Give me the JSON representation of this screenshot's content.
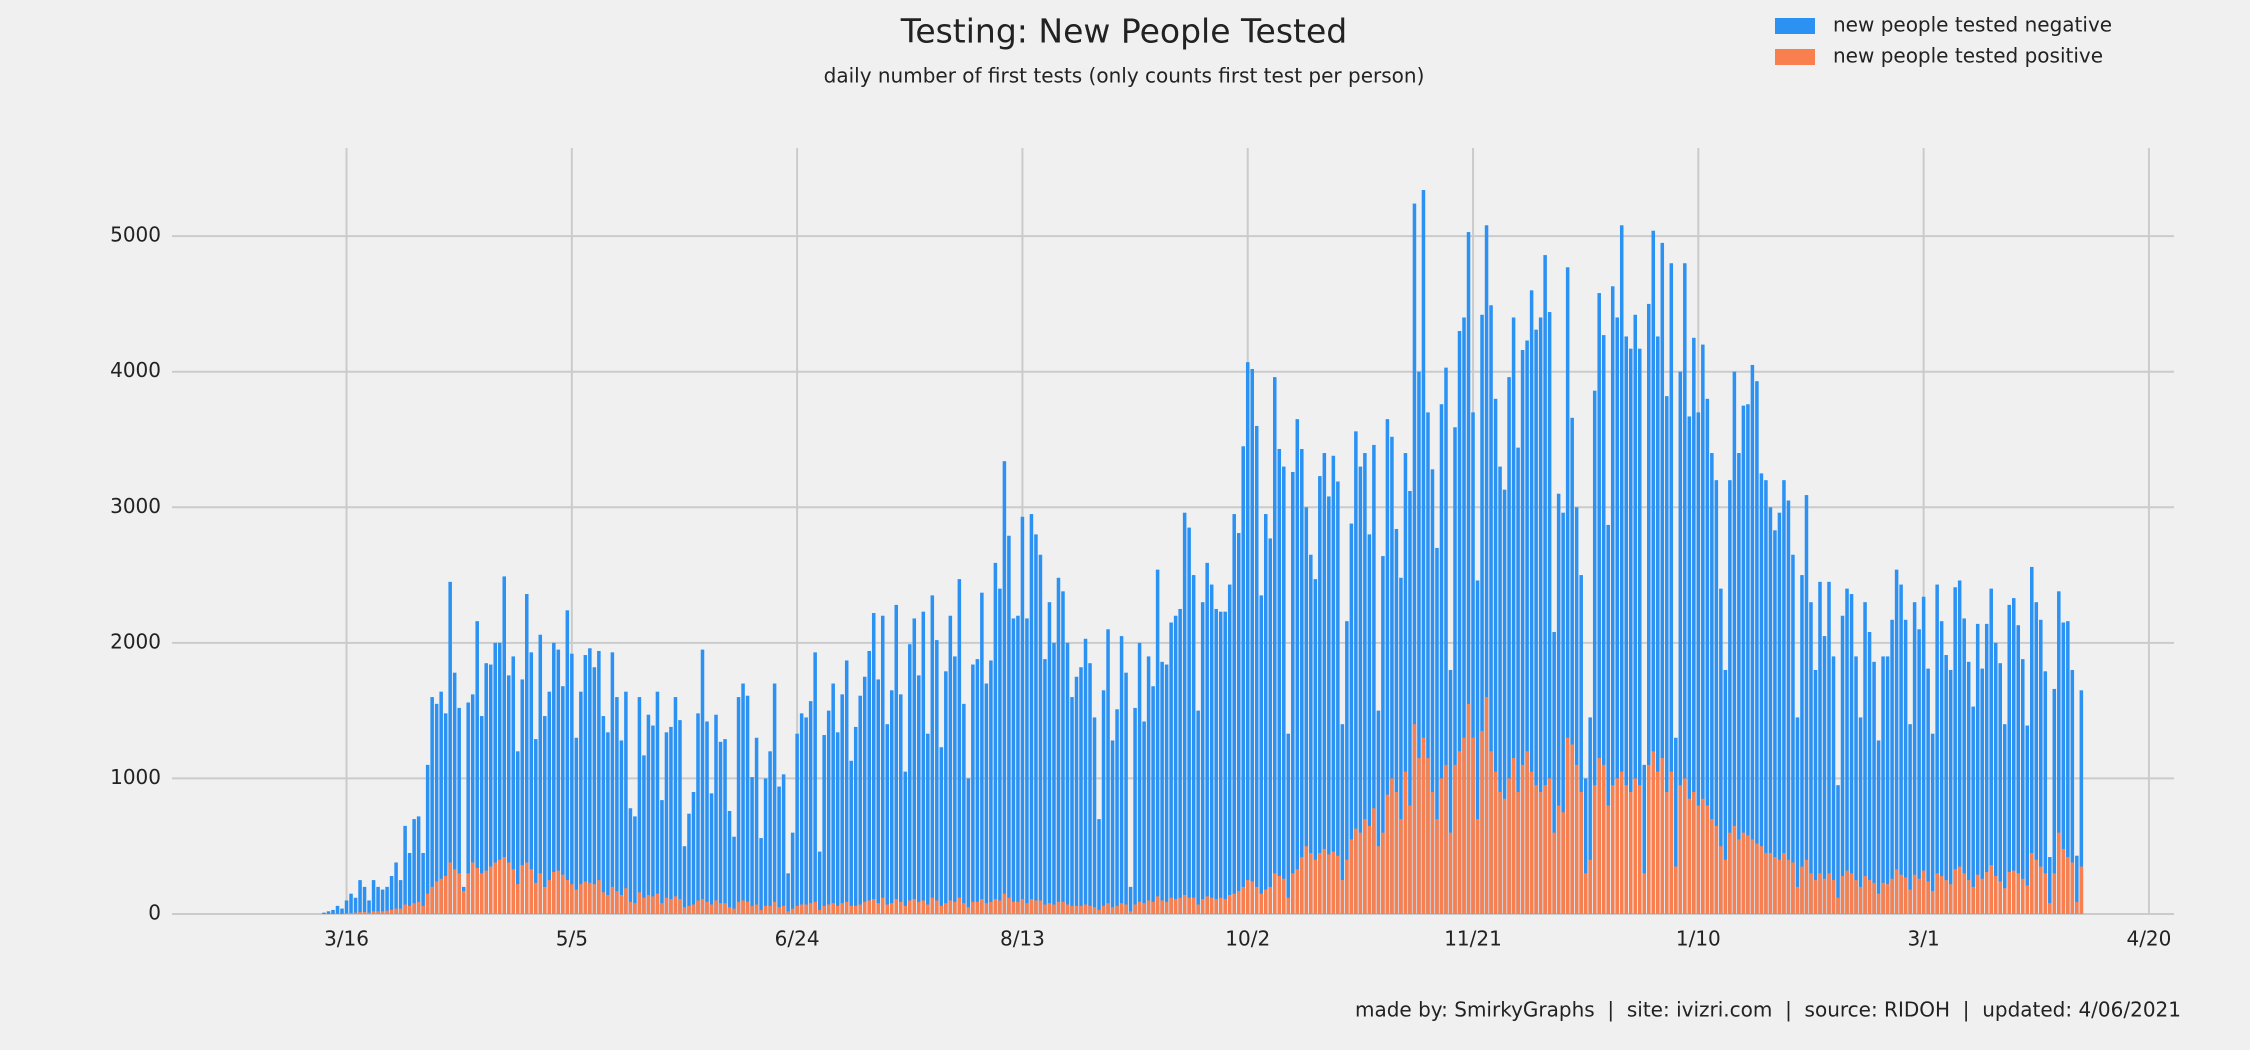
{
  "chart_data": {
    "type": "bar",
    "title": "Testing: New People Tested",
    "subtitle": "daily number of first tests (only counts first test per person)",
    "caption": "made by: SmirkyGraphs  |  site: ivizri.com  |  source: RIDOH  |  updated: 4/06/2021",
    "categories": [
      "3/11",
      "3/12",
      "3/13",
      "3/14",
      "3/15",
      "3/16",
      "3/17",
      "3/18",
      "3/19",
      "3/20",
      "3/21",
      "3/22",
      "3/23",
      "3/24",
      "3/25",
      "3/26",
      "3/27",
      "3/28",
      "3/29",
      "3/30",
      "3/31",
      "4/1",
      "4/2",
      "4/3",
      "4/4",
      "4/5",
      "4/6",
      "4/7",
      "4/8",
      "4/9",
      "4/10",
      "4/11",
      "4/12",
      "4/13",
      "4/14",
      "4/15",
      "4/16",
      "4/17",
      "4/18",
      "4/19",
      "4/20",
      "4/21",
      "4/22",
      "4/23",
      "4/24",
      "4/25",
      "4/26",
      "4/27",
      "4/28",
      "4/29",
      "4/30",
      "5/1",
      "5/2",
      "5/3",
      "5/4",
      "5/5",
      "5/6",
      "5/7",
      "5/8",
      "5/9",
      "5/10",
      "5/11",
      "5/12",
      "5/13",
      "5/14",
      "5/15",
      "5/16",
      "5/17",
      "5/18",
      "5/19",
      "5/20",
      "5/21",
      "5/22",
      "5/23",
      "5/24",
      "5/25",
      "5/26",
      "5/27",
      "5/28",
      "5/29",
      "5/30",
      "5/31",
      "6/1",
      "6/2",
      "6/3",
      "6/4",
      "6/5",
      "6/6",
      "6/7",
      "6/8",
      "6/9",
      "6/10",
      "6/11",
      "6/12",
      "6/13",
      "6/14",
      "6/15",
      "6/16",
      "6/17",
      "6/18",
      "6/19",
      "6/20",
      "6/21",
      "6/22",
      "6/23",
      "6/24",
      "6/25",
      "6/26",
      "6/27",
      "6/28",
      "6/29",
      "6/30",
      "7/1",
      "7/2",
      "7/3",
      "7/4",
      "7/5",
      "7/6",
      "7/7",
      "7/8",
      "7/9",
      "7/10",
      "7/11",
      "7/12",
      "7/13",
      "7/14",
      "7/15",
      "7/16",
      "7/17",
      "7/18",
      "7/19",
      "7/20",
      "7/21",
      "7/22",
      "7/23",
      "7/24",
      "7/25",
      "7/26",
      "7/27",
      "7/28",
      "7/29",
      "7/30",
      "7/31",
      "8/1",
      "8/2",
      "8/3",
      "8/4",
      "8/5",
      "8/6",
      "8/7",
      "8/8",
      "8/9",
      "8/10",
      "8/11",
      "8/12",
      "8/13",
      "8/14",
      "8/15",
      "8/16",
      "8/17",
      "8/18",
      "8/19",
      "8/20",
      "8/21",
      "8/22",
      "8/23",
      "8/24",
      "8/25",
      "8/26",
      "8/27",
      "8/28",
      "8/29",
      "8/30",
      "8/31",
      "9/1",
      "9/2",
      "9/3",
      "9/4",
      "9/5",
      "9/6",
      "9/7",
      "9/8",
      "9/9",
      "9/10",
      "9/11",
      "9/12",
      "9/13",
      "9/14",
      "9/15",
      "9/16",
      "9/17",
      "9/18",
      "9/19",
      "9/20",
      "9/21",
      "9/22",
      "9/23",
      "9/24",
      "9/25",
      "9/26",
      "9/27",
      "9/28",
      "9/29",
      "9/30",
      "10/1",
      "10/2",
      "10/3",
      "10/4",
      "10/5",
      "10/6",
      "10/7",
      "10/8",
      "10/9",
      "10/10",
      "10/11",
      "10/12",
      "10/13",
      "10/14",
      "10/15",
      "10/16",
      "10/17",
      "10/18",
      "10/19",
      "10/20",
      "10/21",
      "10/22",
      "10/23",
      "10/24",
      "10/25",
      "10/26",
      "10/27",
      "10/28",
      "10/29",
      "10/30",
      "10/31",
      "11/1",
      "11/2",
      "11/3",
      "11/4",
      "11/5",
      "11/6",
      "11/7",
      "11/8",
      "11/9",
      "11/10",
      "11/11",
      "11/12",
      "11/13",
      "11/14",
      "11/15",
      "11/16",
      "11/17",
      "11/18",
      "11/19",
      "11/20",
      "11/21",
      "11/22",
      "11/23",
      "11/24",
      "11/25",
      "11/26",
      "11/27",
      "11/28",
      "11/29",
      "11/30",
      "12/1",
      "12/2",
      "12/3",
      "12/4",
      "12/5",
      "12/6",
      "12/7",
      "12/8",
      "12/9",
      "12/10",
      "12/11",
      "12/12",
      "12/13",
      "12/14",
      "12/15",
      "12/16",
      "12/17",
      "12/18",
      "12/19",
      "12/20",
      "12/21",
      "12/22",
      "12/23",
      "12/24",
      "12/25",
      "12/26",
      "12/27",
      "12/28",
      "12/29",
      "12/30",
      "12/31",
      "1/1",
      "1/2",
      "1/3",
      "1/4",
      "1/5",
      "1/6",
      "1/7",
      "1/8",
      "1/9",
      "1/10",
      "1/11",
      "1/12",
      "1/13",
      "1/14",
      "1/15",
      "1/16",
      "1/17",
      "1/18",
      "1/19",
      "1/20",
      "1/21",
      "1/22",
      "1/23",
      "1/24",
      "1/25",
      "1/26",
      "1/27",
      "1/28",
      "1/29",
      "1/30",
      "1/31",
      "2/1",
      "2/2",
      "2/3",
      "2/4",
      "2/5",
      "2/6",
      "2/7",
      "2/8",
      "2/9",
      "2/10",
      "2/11",
      "2/12",
      "2/13",
      "2/14",
      "2/15",
      "2/16",
      "2/17",
      "2/18",
      "2/19",
      "2/20",
      "2/21",
      "2/22",
      "2/23",
      "2/24",
      "2/25",
      "2/26",
      "2/27",
      "2/28",
      "3/1",
      "3/2",
      "3/3",
      "3/4",
      "3/5",
      "3/6",
      "3/7",
      "3/8",
      "3/9",
      "3/10",
      "3/11",
      "3/12",
      "3/13",
      "3/14",
      "3/15",
      "3/16",
      "3/17",
      "3/18",
      "3/19",
      "3/20",
      "3/21",
      "3/22",
      "3/23",
      "3/24",
      "3/25",
      "3/26",
      "3/27",
      "3/28",
      "3/29",
      "3/30",
      "3/31",
      "4/1",
      "4/2",
      "4/3",
      "4/4",
      "4/5"
    ],
    "series": [
      {
        "name": "new people tested negative",
        "color": "#2b91f2",
        "values": [
          10,
          20,
          30,
          60,
          40,
          100,
          150,
          120,
          250,
          200,
          100,
          250,
          200,
          180,
          200,
          280,
          380,
          250,
          650,
          450,
          700,
          720,
          450,
          1100,
          1600,
          1550,
          1640,
          1480,
          2450,
          1780,
          1520,
          200,
          1560,
          1620,
          2160,
          1460,
          1850,
          1840,
          2000,
          2000,
          2490,
          1760,
          1900,
          1200,
          1730,
          2360,
          1930,
          1290,
          2060,
          1460,
          1640,
          2000,
          1950,
          1680,
          2240,
          1920,
          1300,
          1640,
          1910,
          1960,
          1820,
          1940,
          1460,
          1340,
          1930,
          1600,
          1280,
          1640,
          780,
          720,
          1600,
          1170,
          1470,
          1390,
          1640,
          840,
          1340,
          1380,
          1600,
          1430,
          500,
          740,
          900,
          1480,
          1950,
          1420,
          890,
          1470,
          1270,
          1290,
          760,
          570,
          1600,
          1700,
          1610,
          1010,
          1300,
          560,
          1000,
          1200,
          1700,
          940,
          1030,
          300,
          600,
          1330,
          1480,
          1450,
          1570,
          1930,
          460,
          1320,
          1500,
          1700,
          1340,
          1620,
          1870,
          1130,
          1380,
          1610,
          1750,
          1940,
          2220,
          1730,
          2200,
          1400,
          1650,
          2280,
          1620,
          1050,
          1990,
          2180,
          1760,
          2230,
          1330,
          2350,
          2020,
          1230,
          1790,
          2200,
          1900,
          2470,
          1550,
          1000,
          1840,
          1880,
          2370,
          1700,
          1870,
          2590,
          2400,
          3340,
          2790,
          2180,
          2200,
          2930,
          2180,
          2950,
          2800,
          2650,
          1880,
          2300,
          2000,
          2480,
          2380,
          2000,
          1600,
          1750,
          1820,
          2030,
          1850,
          1450,
          700,
          1650,
          2100,
          1280,
          1510,
          2050,
          1780,
          200,
          1520,
          2000,
          1420,
          1900,
          1680,
          2540,
          1860,
          1840,
          2150,
          2200,
          2250,
          2960,
          2850,
          2500,
          1500,
          2300,
          2590,
          2430,
          2250,
          2230,
          2230,
          2430,
          2950,
          2810,
          3450,
          4070,
          4020,
          3600,
          2350,
          2950,
          2770,
          3960,
          3430,
          3300,
          1330,
          3260,
          3650,
          3430,
          3000,
          2650,
          2470,
          3230,
          3400,
          3080,
          3380,
          3190,
          1400,
          2160,
          2880,
          3560,
          3300,
          3400,
          2800,
          3460,
          1500,
          2640,
          3650,
          3520,
          2840,
          2480,
          3400,
          3120,
          5240,
          4000,
          5340,
          3700,
          3280,
          2700,
          3760,
          4030,
          1800,
          3590,
          4300,
          4400,
          5030,
          3700,
          2460,
          4420,
          5080,
          4490,
          3800,
          3300,
          3130,
          3960,
          4400,
          3440,
          4160,
          4230,
          4600,
          4310,
          4400,
          4860,
          4440,
          2080,
          3100,
          2960,
          4770,
          3660,
          3000,
          2500,
          1000,
          1450,
          3860,
          4580,
          4270,
          2870,
          4630,
          4400,
          5080,
          4260,
          4170,
          4420,
          4170,
          1100,
          4500,
          5040,
          4260,
          4950,
          3820,
          4800,
          1300,
          4000,
          4800,
          3670,
          4250,
          3700,
          4200,
          3800,
          3400,
          3200,
          2400,
          1800,
          3200,
          4000,
          3400,
          3750,
          3760,
          4050,
          3930,
          3250,
          3200,
          3000,
          2830,
          2960,
          3200,
          3050,
          2650,
          1450,
          2500,
          3090,
          2300,
          1800,
          2450,
          2050,
          2450,
          1900,
          950,
          2200,
          2400,
          2360,
          1900,
          1450,
          2300,
          2080,
          1860,
          1280,
          1900,
          1900,
          2170,
          2540,
          2430,
          2170,
          1400,
          2300,
          2100,
          2340,
          1810,
          1330,
          2430,
          2160,
          1910,
          1800,
          2410,
          2460,
          2180,
          1860,
          1530,
          2140,
          1810,
          2140,
          2400,
          2000,
          1850,
          1400,
          2280,
          2330,
          2130,
          1880,
          1390,
          2560,
          2300,
          2170,
          1790,
          420,
          1660,
          2380,
          2150,
          2160,
          1800,
          430,
          1650
        ]
      },
      {
        "name": "new people tested positive",
        "color": "#f9804e",
        "values": [
          0,
          0,
          1,
          2,
          2,
          5,
          8,
          10,
          15,
          15,
          10,
          20,
          20,
          20,
          25,
          30,
          40,
          40,
          70,
          60,
          80,
          90,
          60,
          150,
          200,
          240,
          260,
          280,
          380,
          330,
          300,
          170,
          300,
          380,
          340,
          300,
          320,
          350,
          380,
          400,
          420,
          380,
          330,
          220,
          360,
          380,
          330,
          230,
          300,
          200,
          250,
          310,
          320,
          290,
          250,
          220,
          180,
          220,
          240,
          230,
          220,
          250,
          160,
          140,
          200,
          170,
          140,
          190,
          90,
          80,
          160,
          120,
          140,
          130,
          150,
          80,
          120,
          110,
          130,
          110,
          50,
          60,
          70,
          100,
          110,
          90,
          70,
          100,
          80,
          80,
          50,
          40,
          90,
          100,
          90,
          60,
          70,
          30,
          60,
          60,
          90,
          50,
          60,
          20,
          40,
          60,
          70,
          70,
          80,
          90,
          30,
          60,
          70,
          80,
          60,
          80,
          90,
          60,
          60,
          70,
          90,
          100,
          110,
          80,
          120,
          70,
          80,
          110,
          90,
          60,
          100,
          110,
          90,
          100,
          70,
          120,
          100,
          60,
          80,
          100,
          90,
          120,
          80,
          50,
          90,
          90,
          110,
          80,
          90,
          110,
          100,
          150,
          120,
          90,
          90,
          110,
          80,
          110,
          100,
          100,
          70,
          80,
          70,
          90,
          90,
          70,
          60,
          60,
          60,
          70,
          60,
          50,
          30,
          60,
          80,
          50,
          60,
          80,
          70,
          20,
          70,
          90,
          80,
          100,
          90,
          130,
          100,
          90,
          120,
          110,
          120,
          140,
          120,
          120,
          70,
          110,
          130,
          120,
          110,
          120,
          110,
          140,
          150,
          170,
          200,
          250,
          240,
          200,
          150,
          180,
          200,
          300,
          280,
          260,
          120,
          300,
          330,
          420,
          500,
          450,
          400,
          450,
          480,
          440,
          460,
          430,
          250,
          400,
          550,
          630,
          600,
          700,
          650,
          780,
          500,
          600,
          880,
          1000,
          900,
          700,
          1050,
          800,
          1400,
          1150,
          1300,
          1150,
          900,
          700,
          1000,
          1100,
          600,
          1100,
          1200,
          1300,
          1550,
          1300,
          700,
          1350,
          1600,
          1200,
          1050,
          900,
          850,
          1000,
          1150,
          900,
          1100,
          1200,
          1050,
          950,
          900,
          950,
          1000,
          600,
          800,
          750,
          1300,
          1250,
          1100,
          900,
          300,
          400,
          950,
          1150,
          1100,
          800,
          950,
          1000,
          1050,
          950,
          900,
          1000,
          950,
          300,
          1100,
          1200,
          1050,
          1150,
          900,
          1050,
          350,
          950,
          1000,
          850,
          900,
          800,
          850,
          800,
          700,
          650,
          500,
          400,
          600,
          650,
          550,
          600,
          580,
          550,
          520,
          500,
          450,
          450,
          420,
          400,
          450,
          400,
          380,
          200,
          350,
          400,
          300,
          250,
          300,
          260,
          300,
          250,
          120,
          280,
          320,
          300,
          250,
          200,
          280,
          250,
          230,
          150,
          230,
          220,
          260,
          330,
          290,
          270,
          180,
          290,
          260,
          320,
          240,
          170,
          300,
          280,
          250,
          220,
          330,
          350,
          300,
          250,
          200,
          290,
          260,
          310,
          360,
          280,
          240,
          190,
          310,
          320,
          300,
          260,
          210,
          450,
          400,
          350,
          300,
          80,
          300,
          600,
          480,
          420,
          380,
          90,
          350
        ]
      }
    ],
    "xticks": [
      "3/16",
      "5/5",
      "6/24",
      "8/13",
      "10/2",
      "11/21",
      "1/10",
      "3/1",
      "4/20"
    ],
    "ylim": [
      0,
      5650
    ],
    "yticks": [
      0,
      1000,
      2000,
      3000,
      4000,
      5000
    ],
    "grid": true,
    "legend": "upper right"
  }
}
